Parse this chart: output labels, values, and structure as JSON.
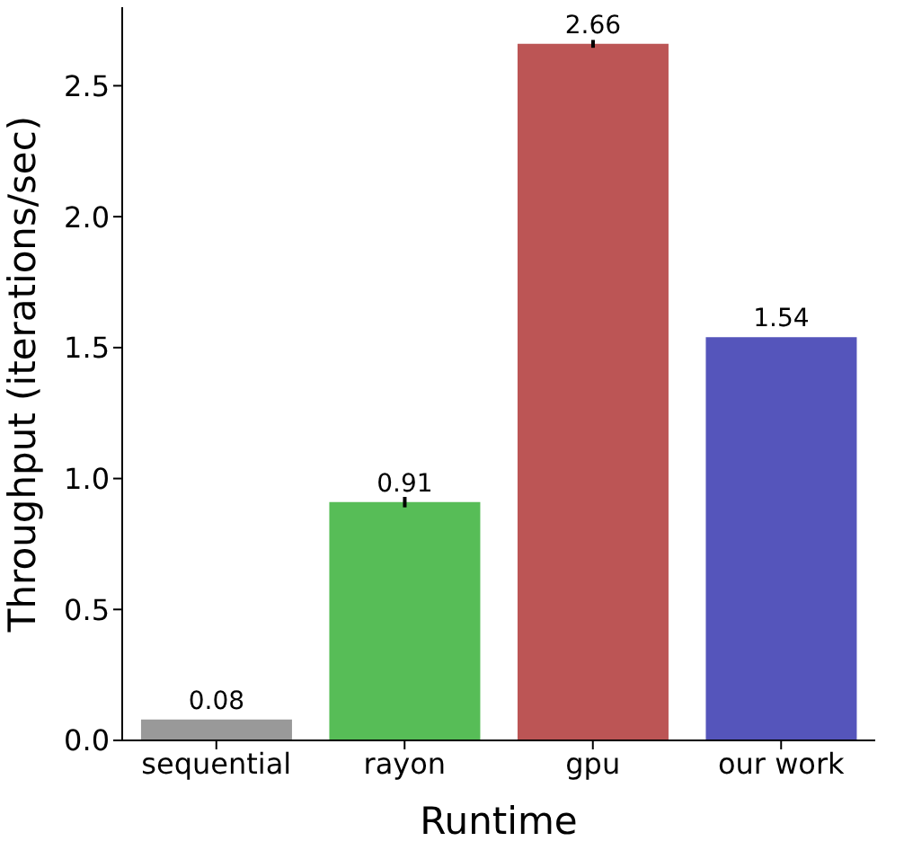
{
  "chart_data": {
    "type": "bar",
    "xlabel": "Runtime",
    "ylabel": "Throughput (iterations/sec)",
    "categories": [
      "sequential",
      "rayon",
      "gpu",
      "our work"
    ],
    "values": [
      0.08,
      0.91,
      2.66,
      1.54
    ],
    "colors": [
      "#999999",
      "#57bd57",
      "#bc5555",
      "#5555bb"
    ],
    "errors": [
      null,
      0.02,
      0.015,
      null
    ],
    "data_labels": true,
    "ylim": [
      0,
      2.8
    ],
    "yticks": [
      {
        "value": 0,
        "label": "0.0"
      },
      0.5,
      {
        "value": 1,
        "label": "1.0"
      },
      1.5,
      {
        "value": 2,
        "label": "2.0"
      },
      2.5
    ],
    "grid": false,
    "legend": false
  }
}
